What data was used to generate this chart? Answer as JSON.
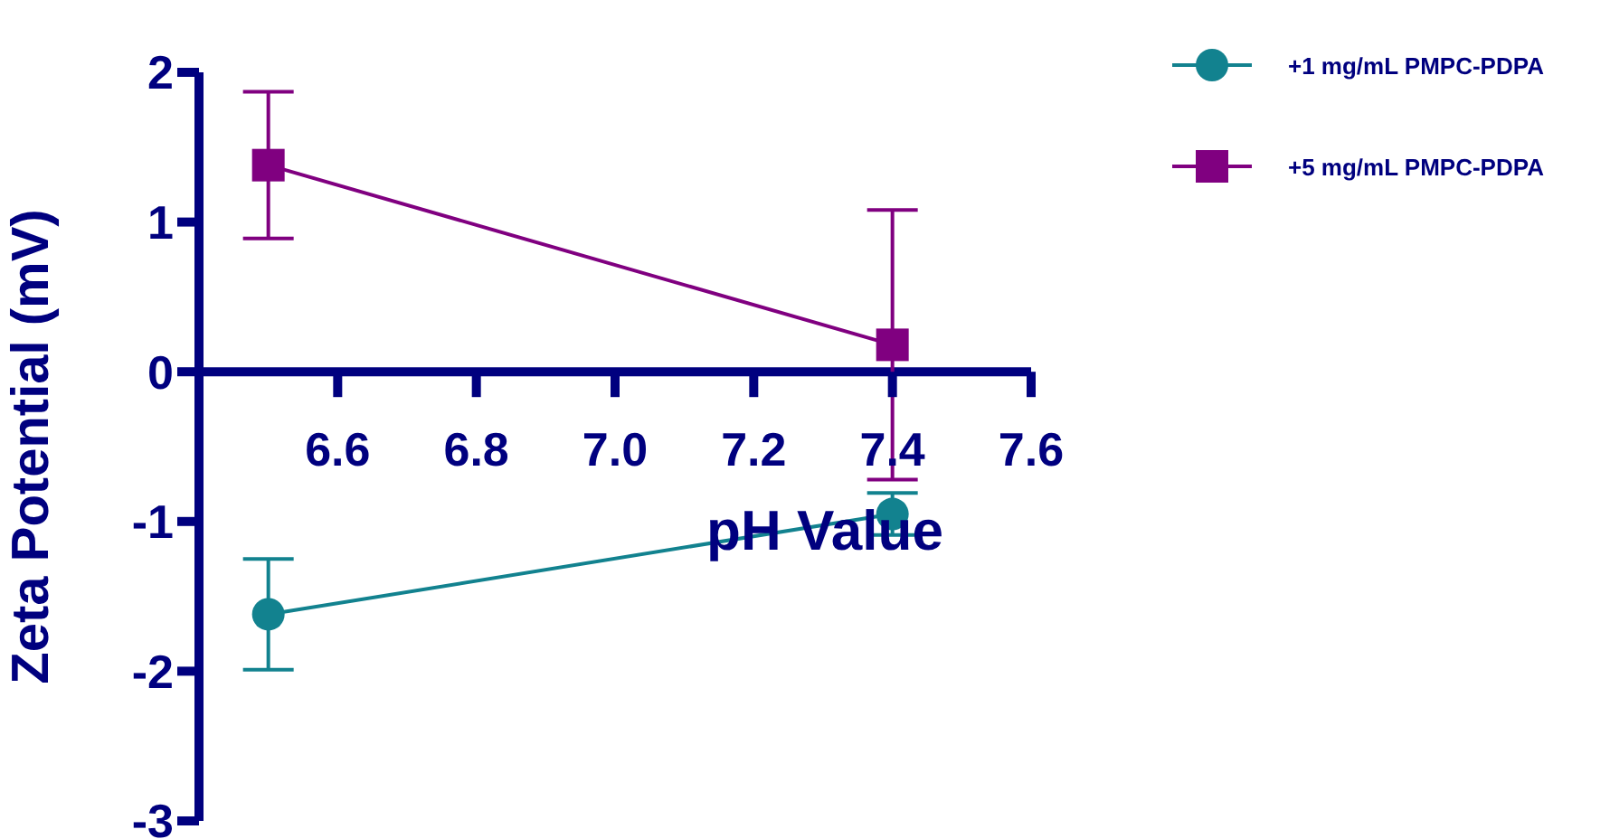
{
  "chart_data": {
    "type": "line",
    "xlabel": "pH Value",
    "ylabel": "Zeta Potential (mV)",
    "x": [
      6.5,
      7.4
    ],
    "series": [
      {
        "name": "+1 mg/mL PMPC-PDPA",
        "color": "#12828f",
        "marker": "circle",
        "values": [
          -1.62,
          -0.95
        ],
        "errors": [
          0.37,
          0.14
        ]
      },
      {
        "name": "+5 mg/mL PMPC-PDPA",
        "color": "#800080",
        "marker": "square",
        "values": [
          1.38,
          0.18
        ],
        "errors": [
          0.49,
          0.9
        ]
      }
    ],
    "xlim": [
      6.4,
      7.6
    ],
    "xticks": [
      6.6,
      6.8,
      {
        "value": 7,
        "label": "7.0"
      },
      7.2,
      7.4,
      7.6
    ],
    "ylim": [
      -3,
      2
    ],
    "yticks": [
      -3,
      -2,
      -1,
      0,
      1,
      2
    ],
    "legend": "top right",
    "grid": false
  }
}
